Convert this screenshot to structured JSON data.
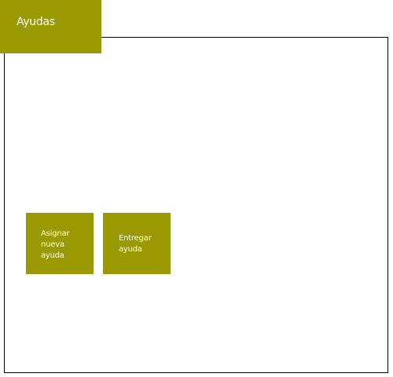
{
  "header": {
    "title": "Ayudas"
  },
  "actions": [
    {
      "label": "Asignar\nnueva\nayuda"
    },
    {
      "label": "Entregar\nayuda"
    }
  ],
  "colors": {
    "accent": "#9a9a00",
    "text_on_accent": "#ffffff",
    "panel_border": "#000000"
  }
}
